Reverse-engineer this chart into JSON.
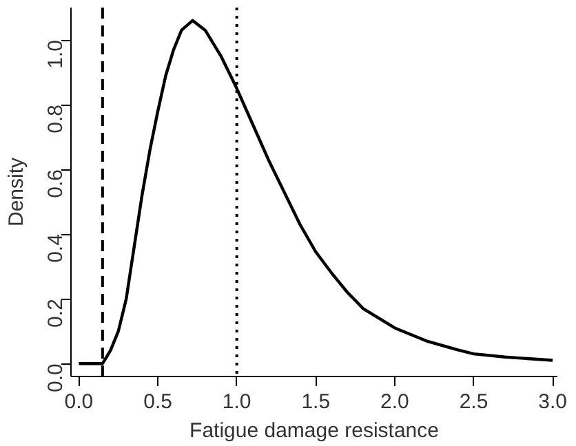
{
  "chart_data": {
    "type": "line",
    "xlabel": "Fatigue damage resistance",
    "ylabel": "Density",
    "x": [
      0.0,
      0.15,
      0.2,
      0.25,
      0.3,
      0.35,
      0.4,
      0.45,
      0.5,
      0.55,
      0.6,
      0.65,
      0.72,
      0.8,
      0.9,
      1.0,
      1.1,
      1.2,
      1.3,
      1.4,
      1.5,
      1.6,
      1.7,
      1.8,
      1.9,
      2.0,
      2.2,
      2.4,
      2.5,
      2.7,
      3.0
    ],
    "series": [
      {
        "color": "#000000",
        "values": [
          0.0,
          0.0,
          0.04,
          0.1,
          0.2,
          0.36,
          0.52,
          0.66,
          0.78,
          0.89,
          0.97,
          1.03,
          1.06,
          1.03,
          0.95,
          0.85,
          0.74,
          0.63,
          0.53,
          0.43,
          0.345,
          0.28,
          0.22,
          0.17,
          0.14,
          0.11,
          0.07,
          0.042,
          0.03,
          0.02,
          0.01
        ]
      }
    ],
    "xlim": [
      -0.05,
      3.03
    ],
    "ylim": [
      -0.04,
      1.1
    ],
    "xticks": [
      {
        "value": 0,
        "label": "0.0"
      },
      0.5,
      {
        "value": 1,
        "label": "1.0"
      },
      1.5,
      {
        "value": 2,
        "label": "2.0"
      },
      2.5,
      {
        "value": 3,
        "label": "3.0"
      }
    ],
    "yticks": [
      {
        "value": 0,
        "label": "0.0"
      },
      0.2,
      0.4,
      0.6,
      0.8,
      {
        "value": 1,
        "label": "1.0"
      }
    ],
    "ref_lines": [
      {
        "axis": "x",
        "value": 0.15,
        "line_style": "dashed",
        "color": "#000000"
      },
      {
        "axis": "x",
        "value": 1.0,
        "line_style": "dotted",
        "color": "#000000"
      }
    ],
    "grid": false,
    "marker": "none",
    "line_style": "solid"
  }
}
